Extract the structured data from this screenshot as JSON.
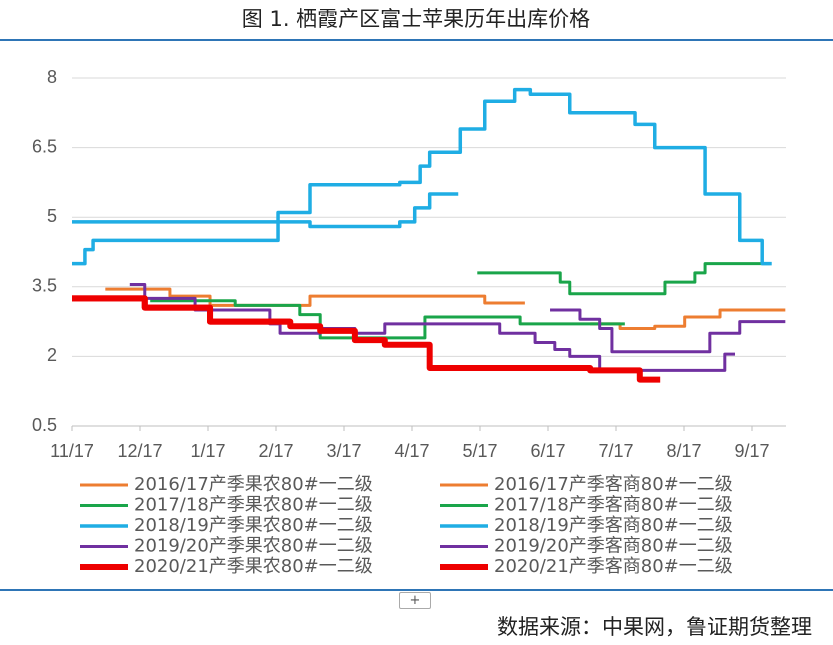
{
  "chart_data": {
    "type": "line",
    "title": "图 1.  栖霞产区富士苹果历年出库价格",
    "source": "数据来源：中果网，鲁证期货整理",
    "ylim": [
      0.5,
      8
    ],
    "yticks": [
      0.5,
      2,
      3.5,
      5,
      6.5,
      8
    ],
    "xlim": [
      0,
      10.5
    ],
    "xticks": [
      {
        "value": 0,
        "label": "11/17"
      },
      {
        "value": 1,
        "label": "12/17"
      },
      {
        "value": 2,
        "label": "1/17"
      },
      {
        "value": 3,
        "label": "2/17"
      },
      {
        "value": 4,
        "label": "3/17"
      },
      {
        "value": 5,
        "label": "4/17"
      },
      {
        "value": 6,
        "label": "5/17"
      },
      {
        "value": 7,
        "label": "6/17"
      },
      {
        "value": 8,
        "label": "7/17"
      },
      {
        "value": 9,
        "label": "8/17"
      },
      {
        "value": 10,
        "label": "9/17"
      }
    ],
    "grid": true,
    "series": [
      {
        "name": "2016/17产季果农80#一二级",
        "color": "#ED7D31",
        "width": 3,
        "x": [
          0.49,
          1.44,
          1.44,
          2.03,
          2.03,
          3.5,
          3.5,
          6.07,
          6.07,
          6.66
        ],
        "values": [
          3.45,
          3.45,
          3.3,
          3.3,
          3.1,
          3.1,
          3.3,
          3.3,
          3.15,
          3.15
        ]
      },
      {
        "name": "2016/17产季客商80#一二级",
        "color": "#ED7D31",
        "width": 3,
        "x": [
          7.62,
          8.06,
          8.06,
          8.57,
          8.57,
          9.01,
          9.01,
          9.53,
          9.53,
          10.49
        ],
        "values": [
          2.7,
          2.7,
          2.6,
          2.6,
          2.65,
          2.65,
          2.85,
          2.85,
          3.0,
          3.0
        ]
      },
      {
        "name": "2017/18产季果农80#一二级",
        "color": "#1AA54A",
        "width": 3,
        "x": [
          1.15,
          2.4,
          2.4,
          3.35,
          3.35,
          3.65,
          3.65,
          5.19,
          5.19,
          6.59,
          6.59,
          8.13
        ],
        "values": [
          3.2,
          3.2,
          3.1,
          3.1,
          2.9,
          2.9,
          2.4,
          2.4,
          2.85,
          2.85,
          2.7,
          2.7
        ]
      },
      {
        "name": "2017/18产季客商80#一二级",
        "color": "#1AA54A",
        "width": 3,
        "x": [
          5.96,
          7.18,
          7.18,
          7.32,
          7.32,
          8.72,
          8.72,
          9.16,
          9.16,
          9.31,
          9.31,
          10.26
        ],
        "values": [
          3.8,
          3.8,
          3.6,
          3.6,
          3.35,
          3.35,
          3.6,
          3.6,
          3.8,
          3.8,
          4.0,
          4.0
        ]
      },
      {
        "name": "2018/19产季果农80#一二级",
        "color": "#1FADE4",
        "width": 3.5,
        "x": [
          0,
          3.03,
          3.03,
          3.5,
          3.5,
          4.82,
          4.82,
          5.12,
          5.12,
          5.26,
          5.26,
          5.71,
          5.71,
          6.07,
          6.07,
          6.51,
          6.51,
          6.74,
          6.74,
          7.32,
          7.32,
          8.28,
          8.28,
          8.57,
          8.57,
          9.31,
          9.31,
          9.82,
          9.82,
          10.15,
          10.15,
          10.29
        ],
        "values": [
          4.9,
          4.9,
          5.1,
          5.1,
          5.7,
          5.7,
          5.75,
          5.75,
          6.1,
          6.1,
          6.4,
          6.4,
          6.9,
          6.9,
          7.5,
          7.5,
          7.75,
          7.75,
          7.65,
          7.65,
          7.25,
          7.25,
          7.0,
          7.0,
          6.5,
          6.5,
          5.5,
          5.5,
          4.5,
          4.5,
          4.0,
          4.0
        ]
      },
      {
        "name": "2018/19产季客商80#一二级",
        "color": "#1FADE4",
        "width": 3.5,
        "x": [
          0,
          0.19,
          0.19,
          0.31,
          0.31,
          3.03,
          3.03,
          3.5,
          3.5,
          4.82,
          4.82,
          5.04,
          5.04,
          5.26,
          5.26,
          5.68
        ],
        "values": [
          4.0,
          4.0,
          4.3,
          4.3,
          4.5,
          4.5,
          4.9,
          4.9,
          4.8,
          4.8,
          4.9,
          4.9,
          5.2,
          5.2,
          5.5,
          5.5
        ]
      },
      {
        "name": "2019/20产季果农80#一二级",
        "color": "#7030A0",
        "width": 3,
        "x": [
          0.85,
          1.07,
          1.07,
          1.81,
          1.81,
          2.91,
          2.91,
          3.06,
          3.06,
          3.65,
          3.65,
          4.16,
          4.16,
          4.6,
          4.6,
          6.29,
          6.29,
          6.81,
          6.81,
          7.1,
          7.1,
          7.32,
          7.32,
          7.76,
          7.76,
          9.6,
          9.6,
          9.75
        ],
        "values": [
          3.55,
          3.55,
          3.25,
          3.25,
          3.0,
          3.0,
          2.7,
          2.7,
          2.5,
          2.5,
          2.6,
          2.6,
          2.5,
          2.5,
          2.7,
          2.7,
          2.5,
          2.5,
          2.3,
          2.3,
          2.15,
          2.15,
          2.0,
          2.0,
          1.7,
          1.7,
          2.05,
          2.05
        ]
      },
      {
        "name": "2019/20产季客商80#一二级",
        "color": "#7030A0",
        "width": 3,
        "x": [
          7.03,
          7.47,
          7.47,
          7.76,
          7.76,
          7.94,
          7.94,
          9.38,
          9.38,
          9.82,
          9.82,
          10.49
        ],
        "values": [
          3.0,
          3.0,
          2.8,
          2.8,
          2.6,
          2.6,
          2.1,
          2.1,
          2.5,
          2.5,
          2.75,
          2.75
        ]
      },
      {
        "name": "2020/21产季果农80#一二级",
        "color": "#EE0000",
        "width": 6,
        "x": [
          0,
          1.07,
          1.07,
          2.03,
          2.03,
          3.21,
          3.21,
          3.65,
          3.65,
          4.16,
          4.16,
          4.6,
          4.6,
          5.26,
          5.26,
          7.62,
          7.62,
          8.35,
          8.35,
          8.65
        ],
        "values": [
          3.25,
          3.25,
          3.05,
          3.05,
          2.75,
          2.75,
          2.65,
          2.65,
          2.55,
          2.55,
          2.35,
          2.35,
          2.25,
          2.25,
          1.75,
          1.75,
          1.7,
          1.7,
          1.5,
          1.5
        ]
      },
      {
        "name": "2020/21产季客商80#一二级",
        "color": "#EE0000",
        "width": 6,
        "x": [
          0,
          1.07,
          1.07,
          2.03,
          2.03,
          3.21
        ],
        "values": [
          3.25,
          3.25,
          3.05,
          3.05,
          2.75,
          2.75
        ]
      }
    ]
  },
  "toolbar": {
    "expand": "+"
  }
}
